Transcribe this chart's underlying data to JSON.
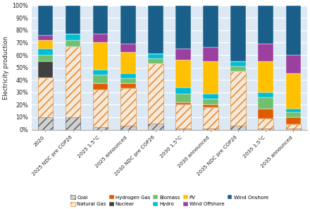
{
  "categories": [
    "2020",
    "2025 NDC pre COP26",
    "2025 1.5°C",
    "2025 announced",
    "2030 NDC pre COP26",
    "2030 1.5°C",
    "2030 announced",
    "2035 NDC pre COP26",
    "2035 1.5°C",
    "2035 announced"
  ],
  "series": {
    "Coal": [
      0.1,
      0.1,
      0.02,
      0.03,
      0.05,
      0.01,
      0.01,
      0.03,
      0.01,
      0.01
    ],
    "Natural Gas": [
      0.32,
      0.57,
      0.3,
      0.3,
      0.48,
      0.19,
      0.17,
      0.44,
      0.08,
      0.03
    ],
    "Hydrogen Gas": [
      0.0,
      0.0,
      0.05,
      0.04,
      0.0,
      0.02,
      0.02,
      0.0,
      0.08,
      0.06
    ],
    "Nuclear": [
      0.13,
      0.0,
      0.0,
      0.0,
      0.0,
      0.0,
      0.0,
      0.0,
      0.0,
      0.0
    ],
    "Biomass": [
      0.05,
      0.05,
      0.07,
      0.04,
      0.04,
      0.07,
      0.05,
      0.04,
      0.09,
      0.04
    ],
    "Hydro": [
      0.05,
      0.05,
      0.04,
      0.04,
      0.04,
      0.05,
      0.04,
      0.04,
      0.04,
      0.03
    ],
    "PV": [
      0.07,
      0.0,
      0.22,
      0.17,
      0.0,
      0.22,
      0.26,
      0.0,
      0.25,
      0.28
    ],
    "Wind Offshore": [
      0.04,
      0.0,
      0.07,
      0.07,
      0.0,
      0.09,
      0.11,
      0.0,
      0.14,
      0.15
    ],
    "Wind Onshore": [
      0.24,
      0.23,
      0.23,
      0.31,
      0.39,
      0.35,
      0.34,
      0.45,
      0.31,
      0.4
    ]
  },
  "colors": {
    "Coal": "#b8b8b8",
    "Natural Gas": "#f4a460",
    "Hydrogen Gas": "#e05c00",
    "Nuclear": "#404040",
    "Biomass": "#70c070",
    "Hydro": "#00bcd4",
    "PV": "#ffc000",
    "Wind Offshore": "#9b3fa0",
    "Wind Onshore": "#1a5f8a"
  },
  "ylabel": "Electricity production",
  "yticks": [
    0.0,
    0.1,
    0.2,
    0.3,
    0.4,
    0.5,
    0.6,
    0.7,
    0.8,
    0.9,
    1.0
  ],
  "yticklabels": [
    "0%",
    "10%",
    "20%",
    "30%",
    "40%",
    "50%",
    "60%",
    "70%",
    "80%",
    "90%",
    "100%"
  ],
  "plot_bg": "#dce9f5",
  "fig_bg": "#ffffff",
  "bar_width": 0.55,
  "legend_order": [
    "Coal",
    "Natural Gas",
    "Hydrogen Gas",
    "Nuclear",
    "Biomass",
    "Hydro",
    "PV",
    "Wind Offshore",
    "Wind Onshore"
  ]
}
